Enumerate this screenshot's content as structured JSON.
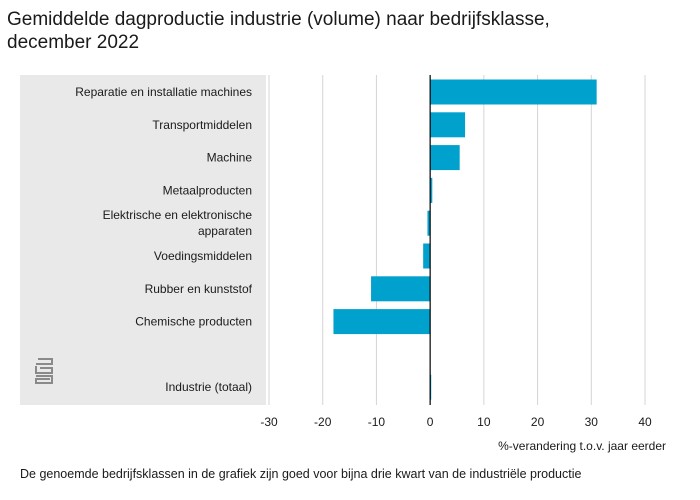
{
  "title": "Gemiddelde dagproductie industrie (volume) naar bedrijfsklasse, december 2022",
  "footnote": "De genoemde bedrijfsklassen in de grafiek zijn goed voor bijna drie kwart van de industriële productie",
  "logo_text": "cbs",
  "colors": {
    "bar": "#00a1cd",
    "panel": "#e9e9e9",
    "grid": "#d4d4d4",
    "zero_line": "#000000"
  },
  "chart_data": {
    "type": "bar",
    "orientation": "horizontal",
    "categories": [
      [
        "Reparatie en installatie machines"
      ],
      [
        "Transportmiddelen"
      ],
      [
        "Machine"
      ],
      [
        "Metaalproducten"
      ],
      [
        "Elektrische en elektronische",
        "apparaten"
      ],
      [
        "Voedingsmiddelen"
      ],
      [
        "Rubber en kunststof"
      ],
      [
        "Chemische producten"
      ],
      [],
      [
        "Industrie (totaal)"
      ]
    ],
    "values": [
      31.0,
      6.5,
      5.5,
      0.4,
      -0.5,
      -1.3,
      -11.0,
      -18.0,
      null,
      0.2
    ],
    "xlabel": "%-verandering t.o.v. jaar eerder",
    "xlim": [
      -30,
      40
    ],
    "xticks": [
      -30,
      -20,
      -10,
      0,
      10,
      20,
      30,
      40
    ],
    "grid": true
  }
}
